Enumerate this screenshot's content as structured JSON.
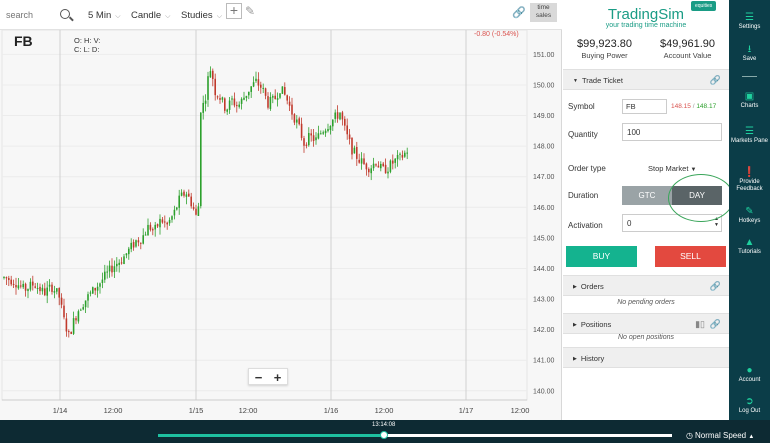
{
  "toolbar": {
    "search_placeholder": "search",
    "interval": "5 Min",
    "chart_type": "Candle",
    "studies": "Studies",
    "time_sales": "time sales"
  },
  "chart": {
    "symbol": "FB",
    "ohlc_line1": "O: H: V:",
    "ohlc_line2": "C: L: D:",
    "change": "-0.80 (-0.54%)"
  },
  "chart_data": {
    "type": "candlestick",
    "ylim": [
      139.8,
      151.5
    ],
    "y_ticks": [
      "151.00",
      "150.00",
      "149.00",
      "148.00",
      "147.00",
      "146.00",
      "145.00",
      "144.00",
      "143.00",
      "142.00",
      "141.00",
      "140.00"
    ],
    "x_ticks": [
      "1/14",
      "12:00",
      "1/15",
      "12:00",
      "1/16",
      "12:00",
      "1/17",
      "12:00"
    ],
    "up_color": "#2ca02c",
    "down_color": "#c0392b",
    "price_path": [
      [
        0,
        143.7
      ],
      [
        10,
        143.6
      ],
      [
        20,
        143.3
      ],
      [
        30,
        143.5
      ],
      [
        40,
        143.2
      ],
      [
        48,
        143.4
      ],
      [
        55,
        143.1
      ],
      [
        60,
        142.3
      ],
      [
        65,
        141.8
      ],
      [
        70,
        142.3
      ],
      [
        75,
        142.7
      ],
      [
        82,
        143.0
      ],
      [
        90,
        143.3
      ],
      [
        100,
        143.7
      ],
      [
        110,
        144.1
      ],
      [
        118,
        144.3
      ],
      [
        125,
        144.6
      ],
      [
        132,
        144.9
      ],
      [
        138,
        145.0
      ],
      [
        145,
        145.4
      ],
      [
        150,
        145.2
      ],
      [
        157,
        145.6
      ],
      [
        163,
        145.4
      ],
      [
        170,
        145.8
      ],
      [
        176,
        146.3
      ],
      [
        182,
        146.5
      ],
      [
        188,
        146.1
      ],
      [
        194,
        145.5
      ],
      [
        197,
        149.5
      ],
      [
        200,
        149.3
      ],
      [
        204,
        150.2
      ],
      [
        207,
        150.6
      ],
      [
        211,
        149.8
      ],
      [
        216,
        149.6
      ],
      [
        222,
        149.2
      ],
      [
        228,
        149.5
      ],
      [
        234,
        149.3
      ],
      [
        240,
        149.6
      ],
      [
        246,
        149.9
      ],
      [
        252,
        150.1
      ],
      [
        258,
        149.9
      ],
      [
        264,
        149.4
      ],
      [
        270,
        149.5
      ],
      [
        276,
        149.9
      ],
      [
        282,
        149.6
      ],
      [
        288,
        149.1
      ],
      [
        294,
        148.7
      ],
      [
        300,
        148.1
      ],
      [
        306,
        148.3
      ],
      [
        312,
        148.2
      ],
      [
        318,
        148.5
      ],
      [
        324,
        148.7
      ],
      [
        330,
        148.9
      ],
      [
        336,
        149.1
      ],
      [
        342,
        148.4
      ],
      [
        348,
        147.9
      ],
      [
        354,
        147.6
      ],
      [
        360,
        147.4
      ],
      [
        366,
        147.3
      ],
      [
        372,
        147.5
      ],
      [
        378,
        147.2
      ],
      [
        384,
        147.3
      ],
      [
        390,
        147.5
      ],
      [
        396,
        147.6
      ],
      [
        402,
        147.8
      ],
      [
        408,
        148.1
      ]
    ]
  },
  "panel": {
    "brand": "TradingSim",
    "badge": "equities",
    "tagline": "your trading time machine",
    "buying_power_value": "$99,923.80",
    "buying_power_label": "Buying Power",
    "account_value_value": "$49,961.90",
    "account_value_label": "Account Value",
    "trade_ticket_title": "Trade Ticket",
    "symbol_label": "Symbol",
    "symbol_value": "FB",
    "bid": "148.15",
    "ask": "148.17",
    "quantity_label": "Quantity",
    "quantity_value": "100",
    "order_type_label": "Order type",
    "order_type_value": "Stop Market",
    "duration_label": "Duration",
    "gtc": "GTC",
    "day": "DAY",
    "activation_label": "Activation",
    "activation_value": "0",
    "buy": "BUY",
    "sell": "SELL",
    "orders_title": "Orders",
    "orders_empty": "No pending orders",
    "positions_title": "Positions",
    "positions_empty": "No open positions",
    "history_title": "History"
  },
  "nav": {
    "settings": "Settings",
    "save": "Save",
    "charts": "Charts",
    "markets_pane": "Markets Pane",
    "provide_feedback": "Provide Feedback",
    "hotkeys": "Hotkeys",
    "tutorials": "Tutorials",
    "account": "Account",
    "log_out": "Log Out"
  },
  "playback": {
    "time": "13:14:08",
    "progress": 0.44,
    "speed": "Normal Speed"
  }
}
